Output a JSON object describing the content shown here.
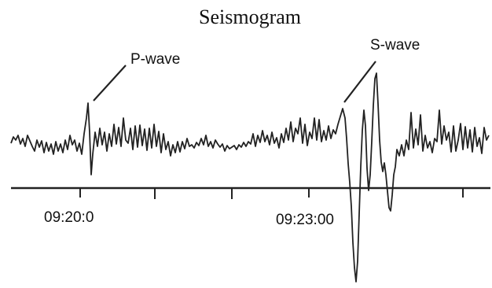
{
  "title": "Seismogram",
  "annotations": {
    "p_wave": "P-wave",
    "s_wave": "S-wave"
  },
  "time_labels": {
    "first": "09:20:0",
    "second": "09:23:00"
  },
  "colors": {
    "trace": "#222222",
    "axis": "#222222",
    "text": "#111111",
    "background": "#ffffff"
  }
}
